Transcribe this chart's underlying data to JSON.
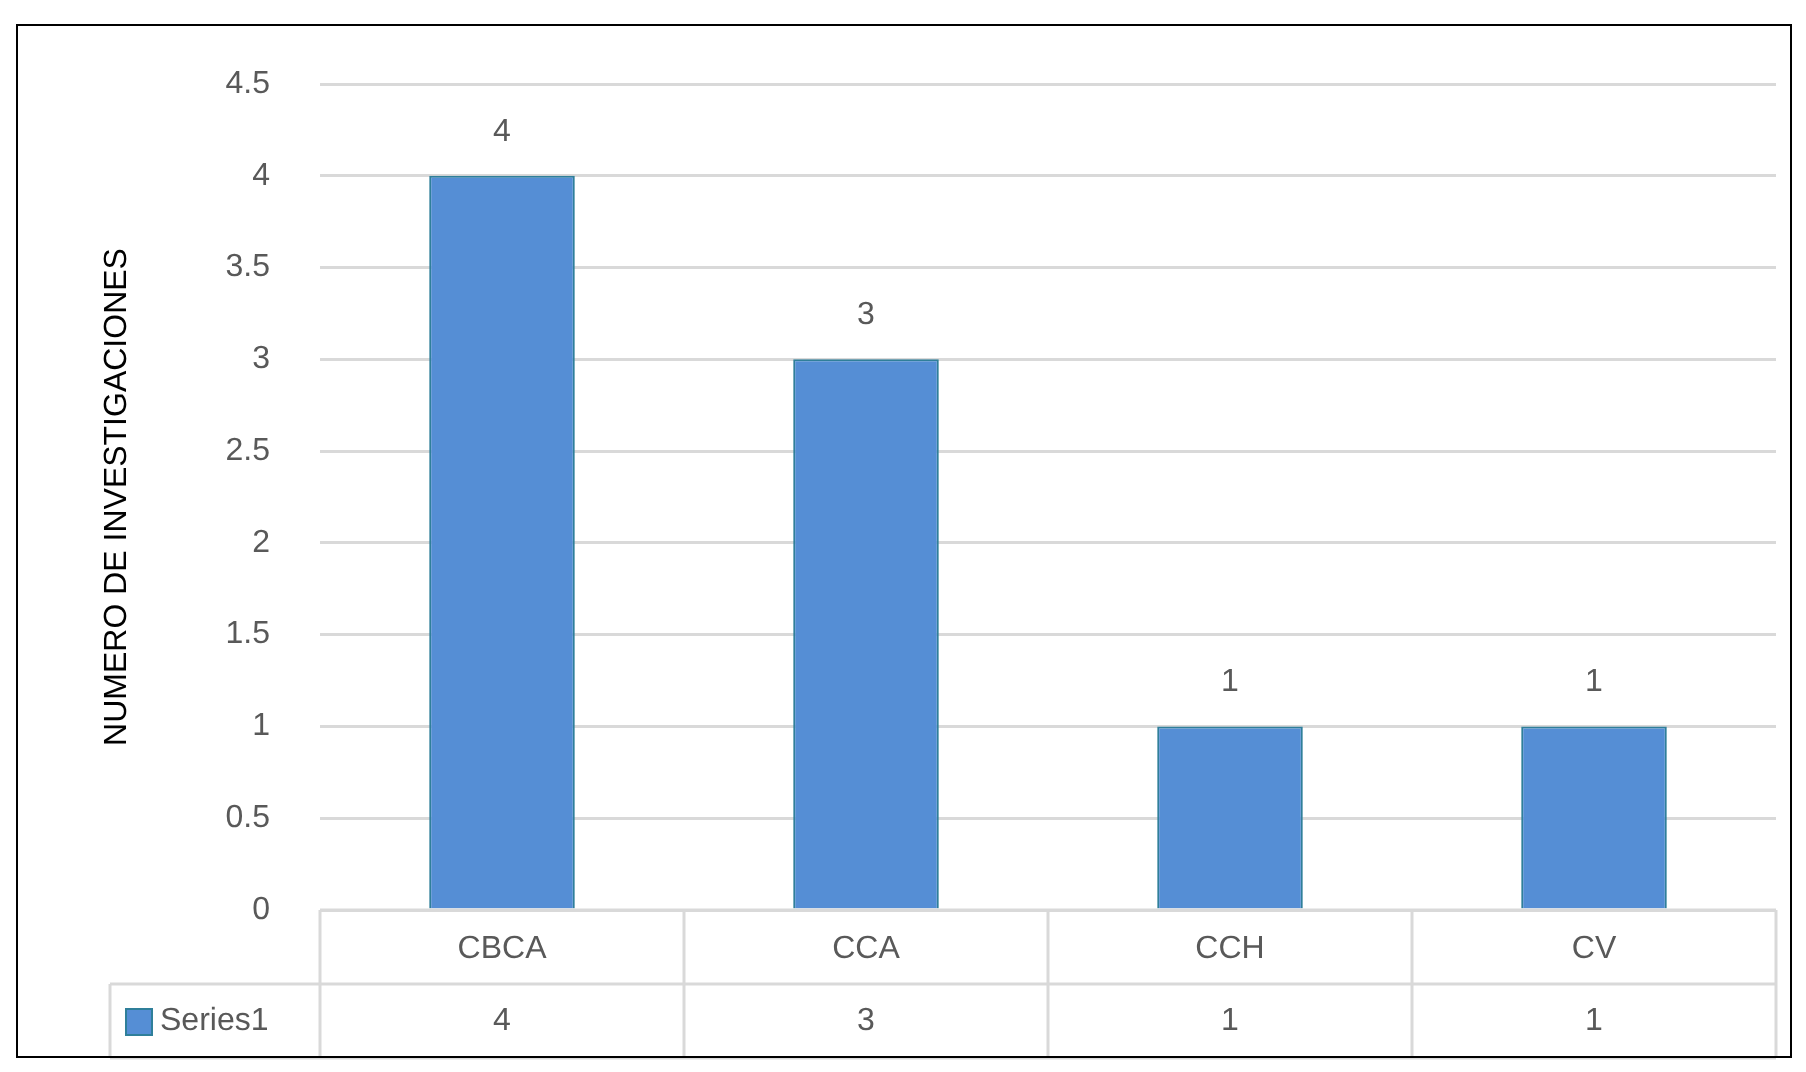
{
  "chart_data": {
    "type": "bar",
    "ylabel": "NUMERO DE INVESTIGACIONES",
    "categories": [
      "CBCA",
      "CCA",
      "CCH",
      "CV"
    ],
    "series": [
      {
        "name": "Series1",
        "color": "#558ed5",
        "values": [
          4,
          3,
          1,
          1
        ]
      }
    ],
    "ylim": [
      0,
      4.5
    ],
    "yticks": [
      0,
      0.5,
      1,
      1.5,
      2,
      2.5,
      3,
      3.5,
      4,
      4.5
    ],
    "grid": "y",
    "data_labels": true,
    "annotations": [
      "4",
      "3",
      "1",
      "1"
    ],
    "legend": "bottom left"
  }
}
